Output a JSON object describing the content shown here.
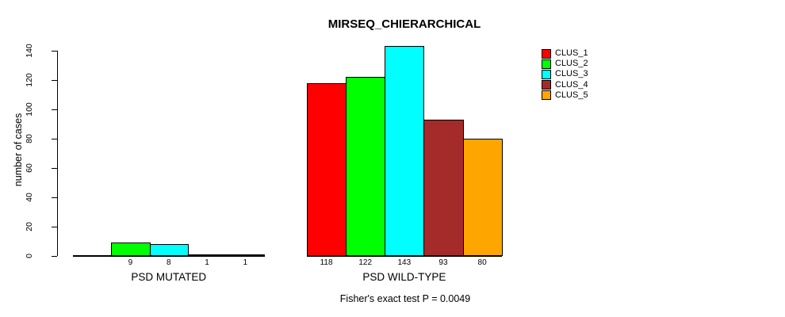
{
  "title": "MIRSEQ_CHIERARCHICAL",
  "footer": "Fisher's exact test P = 0.0049",
  "chart_data": {
    "type": "bar",
    "title": "MIRSEQ_CHIERARCHICAL",
    "xlabel": "",
    "ylabel": "number of cases",
    "ylim": [
      0,
      140
    ],
    "yticks": [
      0,
      20,
      40,
      60,
      80,
      100,
      120,
      140
    ],
    "grid": false,
    "legend_position": "right",
    "categories": [
      "PSD MUTATED",
      "PSD WILD-TYPE"
    ],
    "series": [
      {
        "name": "CLUS_1",
        "color": "#FF0000",
        "values": [
          0,
          118
        ]
      },
      {
        "name": "CLUS_2",
        "color": "#00FF00",
        "values": [
          9,
          122
        ]
      },
      {
        "name": "CLUS_3",
        "color": "#00FFFF",
        "values": [
          8,
          143
        ]
      },
      {
        "name": "CLUS_4",
        "color": "#A52A2A",
        "values": [
          1,
          93
        ]
      },
      {
        "name": "CLUS_5",
        "color": "#FFA500",
        "values": [
          1,
          80
        ]
      }
    ],
    "bar_value_labels": [
      [
        "",
        "9",
        "8",
        "1",
        "1"
      ],
      [
        "118",
        "122",
        "143",
        "93",
        "80"
      ]
    ],
    "annotation": "Fisher's exact test P = 0.0049"
  }
}
